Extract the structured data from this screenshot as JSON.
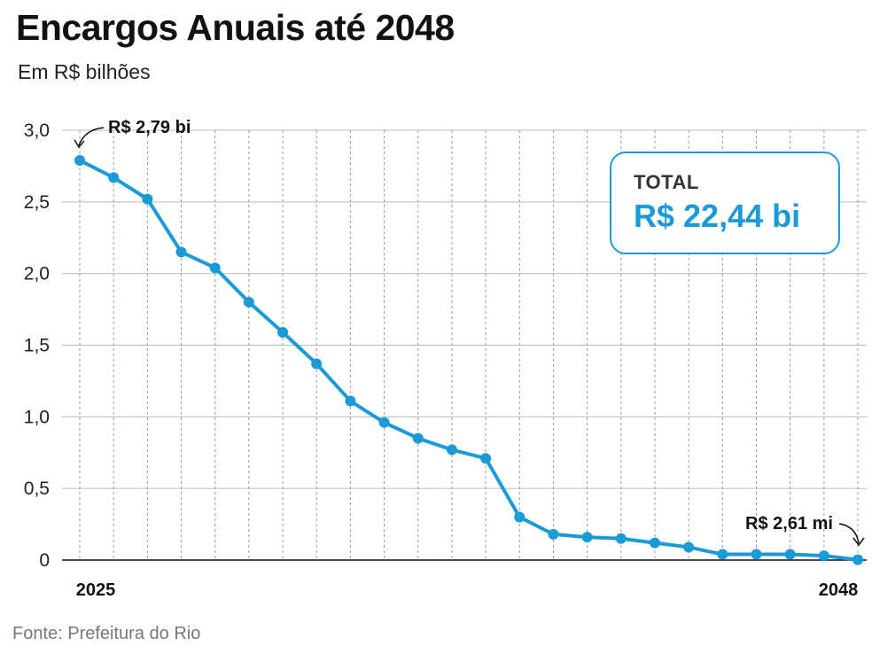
{
  "header": {
    "title": "Encargos Anuais até 2048",
    "subtitle": "Em R$ bilhões"
  },
  "source": "Fonte: Prefeitura do Rio",
  "total_box": {
    "label": "TOTAL",
    "value": "R$ 22,44 bi"
  },
  "annotations": {
    "first": "R$ 2,79 bi",
    "last": "R$ 2,61 mi"
  },
  "colors": {
    "series": "#1a9ad6",
    "grid_vertical": "#999999",
    "grid_horizontal": "#bbbbbb",
    "axis": "#111111"
  },
  "chart_data": {
    "type": "line",
    "title": "Encargos Anuais até 2048",
    "subtitle": "Em R$ bilhões",
    "x": [
      2025,
      2026,
      2027,
      2028,
      2029,
      2030,
      2031,
      2032,
      2033,
      2034,
      2035,
      2036,
      2037,
      2038,
      2039,
      2040,
      2041,
      2042,
      2043,
      2044,
      2045,
      2046,
      2047,
      2048
    ],
    "x_tick_labels": [
      "2025",
      "2048"
    ],
    "series": [
      {
        "values": [
          2.79,
          2.67,
          2.52,
          2.15,
          2.04,
          1.8,
          1.59,
          1.37,
          1.11,
          0.96,
          0.85,
          0.77,
          0.71,
          0.3,
          0.18,
          0.16,
          0.15,
          0.12,
          0.09,
          0.04,
          0.04,
          0.04,
          0.03,
          0.0026
        ]
      }
    ],
    "ylim": [
      0,
      3
    ],
    "y_ticks": [
      0,
      0.5,
      1.0,
      1.5,
      2.0,
      2.5,
      3.0
    ],
    "y_tick_labels": [
      "0",
      "0,5",
      "1,0",
      "1,5",
      "2,0",
      "2,5",
      "3,0"
    ],
    "xlabel": "",
    "ylabel": "",
    "grid": {
      "horizontal": true,
      "vertical": "dashed"
    },
    "legend": "none"
  }
}
